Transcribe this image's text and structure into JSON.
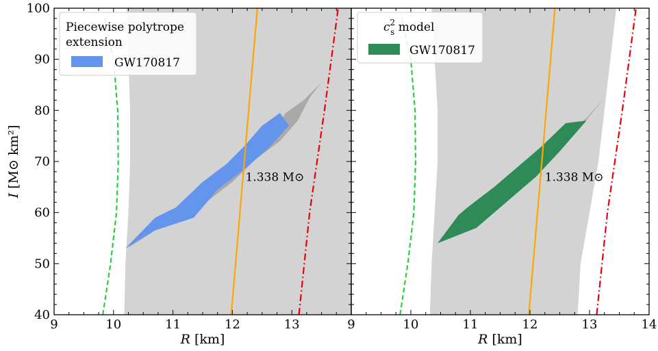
{
  "chart_data": [
    {
      "type": "area",
      "panel": "left",
      "xlabel_var": "R",
      "xlabel_unit": "[km]",
      "ylabel_var": "I",
      "ylabel_unit": "[M⊙ km²]",
      "xlim": [
        9,
        14
      ],
      "ylim": [
        40,
        100
      ],
      "x_ticks": [
        "9",
        "10",
        "11",
        "12",
        "13"
      ],
      "y_ticks": [
        "40",
        "50",
        "60",
        "70",
        "80",
        "90",
        "100"
      ],
      "legend": {
        "title_lines": [
          "Piecewise polytrope",
          "extension"
        ],
        "entries": [
          {
            "label": "GW170817",
            "color": "#6495ed"
          }
        ],
        "position": "top-left"
      },
      "annotation": {
        "text": "1.338 M⊙",
        "x": 12.22,
        "y": 67
      },
      "background_band": {
        "color": "#d3d3d3",
        "left": [
          [
            10.18,
            40
          ],
          [
            10.2,
            50
          ],
          [
            10.25,
            60
          ],
          [
            10.28,
            70
          ],
          [
            10.28,
            80
          ],
          [
            10.25,
            90
          ],
          [
            10.22,
            100
          ]
        ],
        "right": [
          [
            14.0,
            40
          ],
          [
            14.0,
            100
          ]
        ]
      },
      "series": [
        {
          "name": "GW170817",
          "color": "#6495ed",
          "shadow_color": "#a9a9a9",
          "shadow_polygon": [
            [
              10.2,
              53
            ],
            [
              10.7,
              56.5
            ],
            [
              11.3,
              60
            ],
            [
              11.8,
              65
            ],
            [
              12.2,
              70
            ],
            [
              12.6,
              75
            ],
            [
              12.9,
              79.5
            ],
            [
              13.2,
              82
            ],
            [
              13.5,
              85.5
            ],
            [
              13.3,
              82.5
            ],
            [
              13.1,
              78
            ],
            [
              12.8,
              74
            ],
            [
              12.4,
              70.5
            ],
            [
              12.0,
              66
            ],
            [
              11.5,
              61.5
            ],
            [
              10.9,
              58
            ],
            [
              10.3,
              53.5
            ]
          ],
          "polygon": [
            [
              10.2,
              53
            ],
            [
              10.7,
              56.5
            ],
            [
              11.35,
              59
            ],
            [
              11.75,
              64.5
            ],
            [
              12.2,
              68.5
            ],
            [
              12.6,
              72.5
            ],
            [
              12.95,
              77
            ],
            [
              12.8,
              79.5
            ],
            [
              12.5,
              77
            ],
            [
              12.2,
              73
            ],
            [
              11.9,
              69.5
            ],
            [
              11.5,
              66
            ],
            [
              11.05,
              61
            ],
            [
              10.7,
              59
            ]
          ]
        }
      ],
      "lines": [
        {
          "name": "schwarzschild-bound",
          "style": "dashed",
          "color": "#2ecc40",
          "points": [
            [
              9.82,
              40
            ],
            [
              9.95,
              50
            ],
            [
              10.05,
              60
            ],
            [
              10.08,
              70
            ],
            [
              10.07,
              80
            ],
            [
              10.0,
              90
            ],
            [
              9.85,
              98
            ]
          ]
        },
        {
          "name": "1.338 Msun track",
          "style": "solid",
          "color": "#ffa500",
          "points": [
            [
              11.98,
              40
            ],
            [
              12.42,
              100
            ]
          ]
        },
        {
          "name": "upper-bound",
          "style": "dashdot",
          "color": "#e8000b",
          "points": [
            [
              13.12,
              40
            ],
            [
              13.3,
              60
            ],
            [
              13.55,
              80
            ],
            [
              13.78,
              100
            ]
          ]
        }
      ]
    },
    {
      "type": "area",
      "panel": "right",
      "xlabel_var": "R",
      "xlabel_unit": "[km]",
      "xlim": [
        9,
        14
      ],
      "ylim": [
        40,
        100
      ],
      "x_ticks": [
        "9",
        "10",
        "11",
        "12",
        "13",
        "14"
      ],
      "y_ticks": [
        "40",
        "50",
        "60",
        "70",
        "80",
        "90",
        "100"
      ],
      "legend": {
        "title_symbol": "c",
        "title_sup": "2",
        "title_sub": "s",
        "title_rest": " model",
        "entries": [
          {
            "label": "GW170817",
            "color": "#2e8b57"
          }
        ],
        "position": "top-left"
      },
      "annotation": {
        "text": "1.338 M⊙",
        "x": 12.25,
        "y": 67
      },
      "background_band": {
        "color": "#d3d3d3",
        "left": [
          [
            10.32,
            40
          ],
          [
            10.35,
            50
          ],
          [
            10.4,
            60
          ],
          [
            10.45,
            70
          ],
          [
            10.45,
            80
          ],
          [
            10.4,
            90
          ],
          [
            10.35,
            100
          ]
        ],
        "right": [
          [
            12.8,
            40
          ],
          [
            12.85,
            50
          ],
          [
            13.0,
            60
          ],
          [
            13.15,
            70
          ],
          [
            13.25,
            80
          ],
          [
            13.35,
            90
          ],
          [
            13.45,
            100
          ]
        ]
      },
      "series": [
        {
          "name": "GW170817",
          "color": "#2e8b57",
          "shadow_color": "#a9a9a9",
          "shadow_polygon": [
            [
              10.4,
              54
            ],
            [
              10.8,
              58
            ],
            [
              11.3,
              62
            ],
            [
              11.8,
              66.5
            ],
            [
              12.3,
              71
            ],
            [
              12.8,
              76
            ],
            [
              13.25,
              82.5
            ],
            [
              12.95,
              78.5
            ],
            [
              12.5,
              74
            ],
            [
              12.0,
              69
            ],
            [
              11.5,
              64
            ],
            [
              11.1,
              60
            ],
            [
              10.5,
              55
            ]
          ],
          "polygon": [
            [
              10.45,
              54
            ],
            [
              11.1,
              57
            ],
            [
              11.6,
              62
            ],
            [
              12.1,
              67
            ],
            [
              12.5,
              72
            ],
            [
              12.95,
              78
            ],
            [
              12.6,
              77.5
            ],
            [
              12.2,
              73
            ],
            [
              11.8,
              69
            ],
            [
              11.4,
              65
            ],
            [
              10.95,
              61
            ],
            [
              10.8,
              59.5
            ]
          ]
        }
      ],
      "lines": [
        {
          "name": "schwarzschild-bound",
          "style": "dashed",
          "color": "#2ecc40",
          "points": [
            [
              9.82,
              40
            ],
            [
              9.95,
              50
            ],
            [
              10.05,
              60
            ],
            [
              10.08,
              70
            ],
            [
              10.07,
              80
            ],
            [
              10.0,
              90
            ],
            [
              9.85,
              98
            ]
          ]
        },
        {
          "name": "1.338 Msun track",
          "style": "solid",
          "color": "#ffa500",
          "points": [
            [
              11.98,
              40
            ],
            [
              12.42,
              100
            ]
          ]
        },
        {
          "name": "upper-bound",
          "style": "dashdot",
          "color": "#e8000b",
          "points": [
            [
              13.12,
              40
            ],
            [
              13.3,
              60
            ],
            [
              13.55,
              80
            ],
            [
              13.78,
              100
            ]
          ]
        }
      ]
    }
  ]
}
